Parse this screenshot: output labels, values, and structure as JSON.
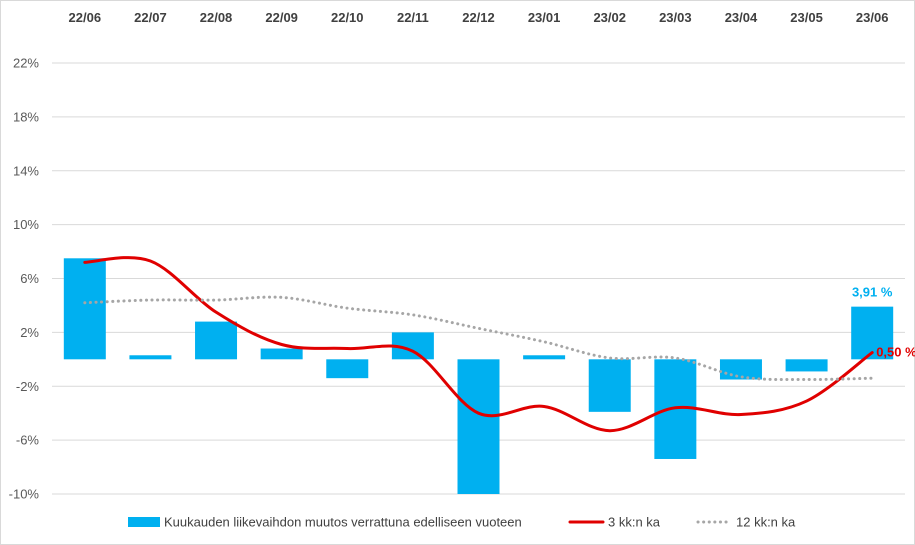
{
  "chart_data": {
    "type": "bar",
    "categories": [
      "22/06",
      "22/07",
      "22/08",
      "22/09",
      "22/10",
      "22/11",
      "22/12",
      "23/01",
      "23/02",
      "23/03",
      "23/04",
      "23/05",
      "23/06"
    ],
    "series": [
      {
        "name": "Kuukauden liikevaihdon muutos verrattuna edelliseen vuoteen",
        "type": "bar",
        "color": "#00b0f0",
        "values": [
          7.5,
          0.3,
          2.8,
          0.8,
          -1.4,
          2.0,
          -10.0,
          0.3,
          -3.9,
          -7.4,
          -1.5,
          -0.9,
          3.91
        ]
      },
      {
        "name": "3 kk:n ka",
        "type": "line",
        "style": "solid-smooth",
        "color": "#e00000",
        "values": [
          7.2,
          7.3,
          3.5,
          1.1,
          0.8,
          0.6,
          -4.0,
          -3.5,
          -5.3,
          -3.6,
          -4.1,
          -3.1,
          0.5
        ]
      },
      {
        "name": "12 kk:n ka",
        "type": "line",
        "style": "dotted-smooth",
        "color": "#a6a6a6",
        "values": [
          4.2,
          4.4,
          4.4,
          4.6,
          3.8,
          3.3,
          2.3,
          1.3,
          0.1,
          0.1,
          -1.3,
          -1.5,
          -1.4
        ]
      }
    ],
    "annotations": [
      {
        "text": "3,91 %",
        "category": "23/06",
        "series": "bar",
        "color": "#00b0f0"
      },
      {
        "text": "0,50 %",
        "category": "23/06",
        "series": "3 kk:n ka",
        "color": "#e00000"
      }
    ],
    "yticks": [
      22,
      18,
      14,
      10,
      6,
      2,
      -2,
      -6,
      -10
    ],
    "ytick_labels": [
      "22%",
      "18%",
      "14%",
      "10%",
      "6%",
      "2%",
      "-2%",
      "-6%",
      "-10%"
    ],
    "ylim": [
      -10,
      22
    ],
    "x_axis_position": "top",
    "grid": true,
    "legend": "bottom"
  }
}
